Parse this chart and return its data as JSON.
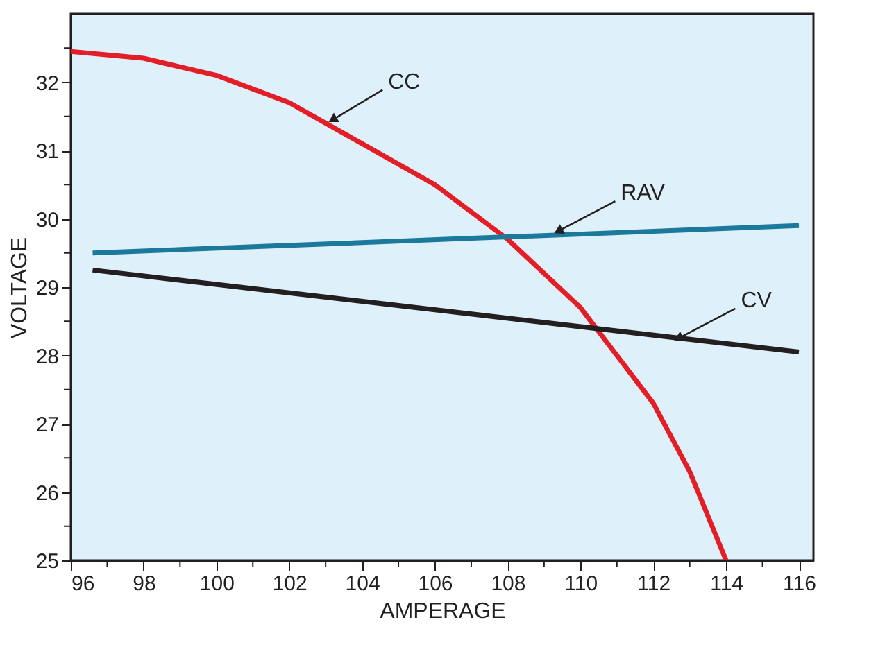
{
  "chart_data": {
    "type": "line",
    "xlabel": "AMPERAGE",
    "ylabel": "VOLTAGE",
    "xlim": [
      96,
      116.4
    ],
    "ylim": [
      25,
      33
    ],
    "xticks": [
      96,
      {
        "value": 97,
        "label": null
      },
      98,
      {
        "value": 99,
        "label": null
      },
      100,
      {
        "value": 101,
        "label": null
      },
      102,
      {
        "value": 103,
        "label": null
      },
      104,
      {
        "value": 105,
        "label": null
      },
      106,
      {
        "value": 107,
        "label": null
      },
      108,
      {
        "value": 109,
        "label": null
      },
      110,
      {
        "value": 111,
        "label": null
      },
      112,
      {
        "value": 113,
        "label": null
      },
      114,
      {
        "value": 115,
        "label": null
      },
      116
    ],
    "yticks": [
      25,
      {
        "value": 25.5,
        "label": null
      },
      26,
      {
        "value": 26.5,
        "label": null
      },
      27,
      {
        "value": 27.5,
        "label": null
      },
      28,
      {
        "value": 28.5,
        "label": null
      },
      29,
      {
        "value": 29.5,
        "label": null
      },
      30,
      {
        "value": 30.5,
        "label": null
      },
      31,
      {
        "value": 31.5,
        "label": null
      },
      32,
      {
        "value": 32.5,
        "label": null
      }
    ],
    "grid": false,
    "marker": "none",
    "line_style": "solid",
    "series": [
      {
        "color": "#e31e26",
        "x": [
          96,
          98,
          100,
          102,
          104,
          106,
          108,
          110,
          112,
          113,
          114
        ],
        "values": [
          32.45,
          32.35,
          32.1,
          31.7,
          31.1,
          30.5,
          29.7,
          28.7,
          27.3,
          26.3,
          25
        ]
      },
      {
        "color": "#1b7a9c",
        "x": [
          96.6,
          116
        ],
        "values": [
          29.5,
          29.9
        ]
      },
      {
        "color": "#231f20",
        "x": [
          96.6,
          116
        ],
        "values": [
          29.25,
          28.05
        ]
      }
    ],
    "annotations": [
      {
        "text": "CC",
        "x": 103,
        "y": 31.4
      },
      {
        "text": "RAV",
        "x": 109.2,
        "y": 29.77
      },
      {
        "text": "CV",
        "x": 112.5,
        "y": 28.2
      }
    ]
  }
}
